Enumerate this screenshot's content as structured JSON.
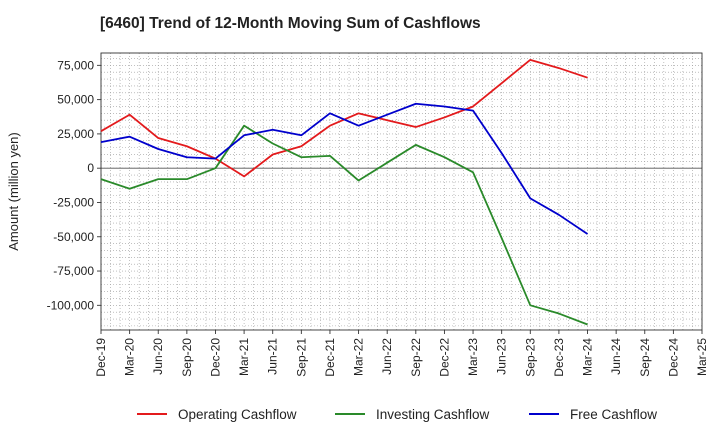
{
  "chart_data": {
    "type": "line",
    "title": "[6460]  Trend of 12-Month Moving Sum of Cashflows",
    "xlabel": "",
    "ylabel": "Amount (million yen)",
    "ylim": [
      -118000,
      84000
    ],
    "yticks": [
      75000,
      50000,
      25000,
      0,
      -25000,
      -50000,
      -75000,
      -100000
    ],
    "ytick_labels": [
      "75,000",
      "50,000",
      "25,000",
      "0",
      "-25,000",
      "-50,000",
      "-75,000",
      "-100,000"
    ],
    "categories": [
      "Dec-19",
      "Mar-20",
      "Jun-20",
      "Sep-20",
      "Dec-20",
      "Mar-21",
      "Jun-21",
      "Sep-21",
      "Dec-21",
      "Mar-22",
      "Jun-22",
      "Sep-22",
      "Dec-22",
      "Mar-23",
      "Jun-23",
      "Sep-23",
      "Dec-23",
      "Mar-24",
      "Jun-24",
      "Sep-24",
      "Dec-24",
      "Mar-25"
    ],
    "grid": true,
    "legend_position": "bottom",
    "series": [
      {
        "name": "Operating Cashflow",
        "color": "#e31a1c",
        "values": [
          27000,
          39000,
          22000,
          16000,
          7000,
          -6000,
          10000,
          16000,
          31000,
          40000,
          35000,
          30000,
          37000,
          45000,
          62000,
          79000,
          73000,
          66000,
          null,
          null,
          null,
          null
        ]
      },
      {
        "name": "Investing Cashflow",
        "color": "#2a8a2a",
        "values": [
          -8000,
          -15000,
          -8000,
          -8000,
          0,
          31000,
          18000,
          8000,
          9000,
          -9000,
          4000,
          17000,
          8000,
          -3000,
          -51000,
          -100000,
          -106000,
          -114000,
          null,
          null,
          null,
          null
        ]
      },
      {
        "name": "Free Cashflow",
        "color": "#0000cc",
        "values": [
          19000,
          23000,
          14000,
          8000,
          7000,
          24000,
          28000,
          24000,
          40000,
          31000,
          39000,
          47000,
          45000,
          42000,
          11000,
          -22000,
          -34000,
          -48000,
          null,
          null,
          null,
          null
        ]
      }
    ]
  }
}
